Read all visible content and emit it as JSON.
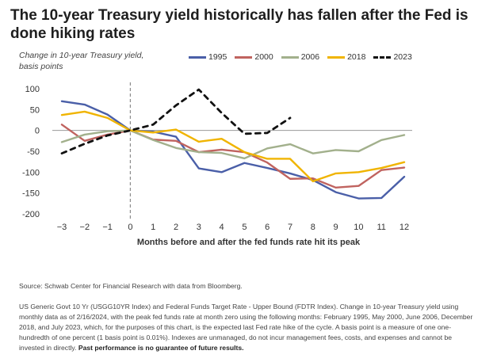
{
  "title": "The 10-year Treasury yield historically has fallen after the Fed is done hiking rates",
  "chart_data": {
    "type": "line",
    "ylabel_line1": "Change in 10-year Treasury yield,",
    "ylabel_line2": "basis points",
    "xlabel": "Months before and after the fed funds rate hit its peak",
    "x": [
      -3,
      -2,
      -1,
      0,
      1,
      2,
      3,
      4,
      5,
      6,
      7,
      8,
      9,
      10,
      11,
      12
    ],
    "xlim": [
      -3,
      12
    ],
    "ylim": [
      -200,
      100
    ],
    "yticks": [
      100,
      50,
      0,
      -50,
      -100,
      -150,
      -200
    ],
    "vline_x": 0,
    "grid": false,
    "legend_position": "top",
    "series": [
      {
        "name": "1995",
        "color": "#4a5fa8",
        "dash": false,
        "values": [
          70,
          62,
          38,
          0,
          -3,
          -15,
          -91,
          -100,
          -78,
          -90,
          -103,
          -119,
          -148,
          -163,
          -162,
          -111
        ]
      },
      {
        "name": "2000",
        "color": "#c0635f",
        "dash": false,
        "values": [
          14,
          -25,
          -10,
          0,
          -22,
          -25,
          -52,
          -46,
          -52,
          -77,
          -116,
          -115,
          -137,
          -133,
          -95,
          -89
        ]
      },
      {
        "name": "2006",
        "color": "#a2b08c",
        "dash": false,
        "values": [
          -28,
          -10,
          -2,
          0,
          -23,
          -42,
          -52,
          -54,
          -67,
          -43,
          -33,
          -55,
          -47,
          -50,
          -23,
          -11
        ]
      },
      {
        "name": "2018",
        "color": "#f0b400",
        "dash": false,
        "values": [
          37,
          45,
          30,
          0,
          -5,
          2,
          -27,
          -20,
          -52,
          -68,
          -68,
          -122,
          -103,
          -100,
          -90,
          -76
        ]
      },
      {
        "name": "2023",
        "color": "#111111",
        "dash": true,
        "values": [
          -55,
          -32,
          -12,
          0,
          14,
          60,
          98,
          42,
          -8,
          -6,
          30,
          null,
          null,
          null,
          null,
          null
        ]
      }
    ]
  },
  "source": "Source: Schwab Center for Financial Research with data from Bloomberg.",
  "notes": "US Generic Govt 10 Yr (USGG10YR Index) and Federal Funds Target Rate - Upper Bound (FDTR Index). Change in 10-year Treasury yield using monthly data as of 2/16/2024, with the peak fed funds rate at month zero using the following months: February 1995, May 2000, June 2006, December 2018, and July 2023, which, for the purposes of this chart, is the expected last Fed rate hike of the cycle. A basis point is a measure of one one-hundredth of one percent (1 basis point is 0.01%). Indexes are unmanaged, do not incur management fees, costs, and expenses and cannot be invested in directly.",
  "disclaimer": "Past performance is no guarantee of future results."
}
